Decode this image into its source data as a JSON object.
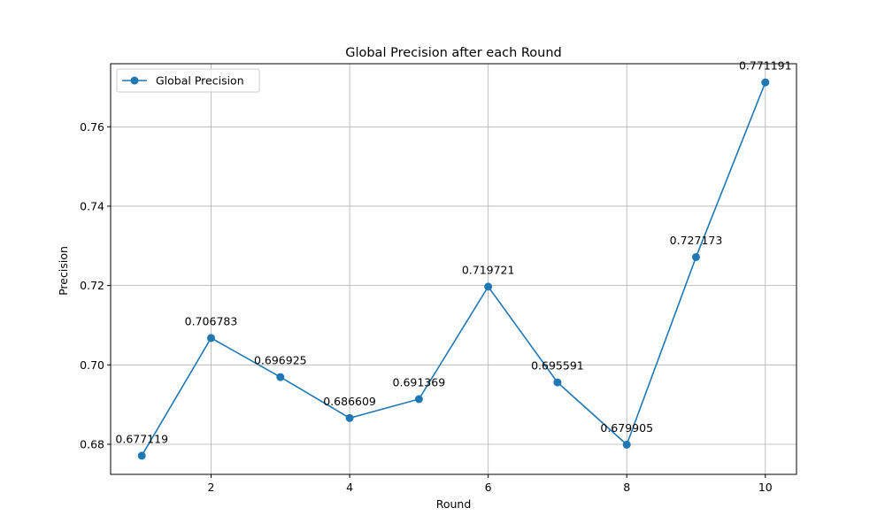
{
  "chart_data": {
    "type": "line",
    "title": "Global Precision after each Round",
    "xlabel": "Round",
    "ylabel": "Precision",
    "x": [
      1,
      2,
      3,
      4,
      5,
      6,
      7,
      8,
      9,
      10
    ],
    "series": [
      {
        "name": "Global Precision",
        "color": "#1f77b4",
        "marker": "circle",
        "values": [
          0.677119,
          0.706783,
          0.696925,
          0.686609,
          0.691369,
          0.719721,
          0.695591,
          0.679905,
          0.727173,
          0.771191
        ]
      }
    ],
    "data_labels": [
      "0.677119",
      "0.706783",
      "0.696925",
      "0.686609",
      "0.691369",
      "0.719721",
      "0.695591",
      "0.679905",
      "0.727173",
      "0.771191"
    ],
    "xlim": [
      0.55,
      10.45
    ],
    "ylim": [
      0.67241,
      0.7759
    ],
    "xticks": [
      2,
      4,
      6,
      8,
      10
    ],
    "xtick_labels": [
      "2",
      "4",
      "6",
      "8",
      "10"
    ],
    "yticks": [
      0.68,
      0.7,
      0.72,
      0.74,
      0.76
    ],
    "ytick_labels": [
      "0.68",
      "0.70",
      "0.72",
      "0.74",
      "0.76"
    ],
    "grid": true,
    "legend": "upper-left"
  }
}
